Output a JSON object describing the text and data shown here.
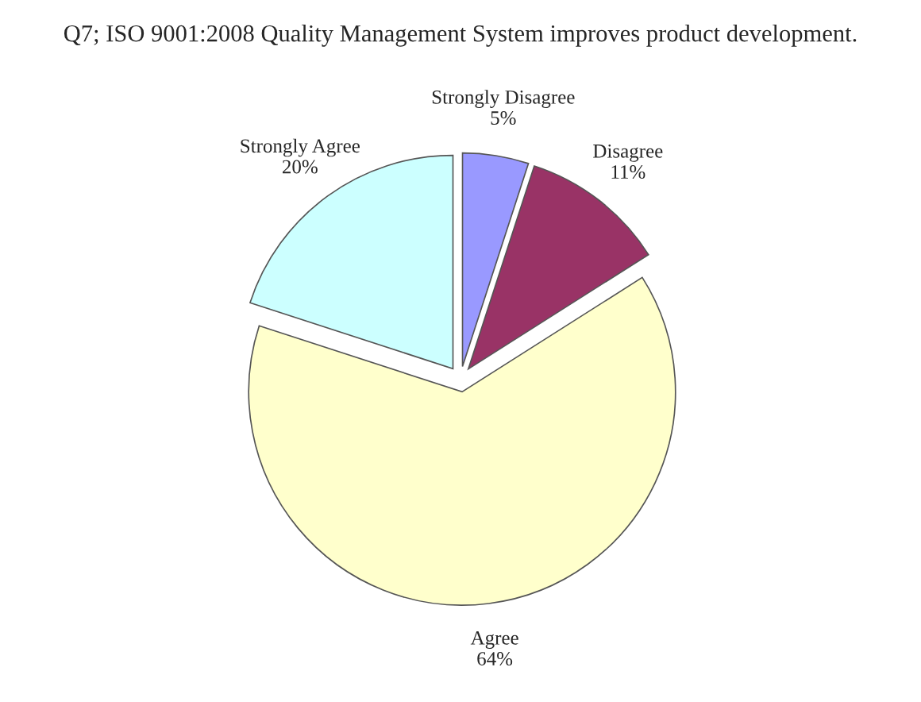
{
  "chart_data": {
    "type": "pie",
    "title": "Q7; ISO 9001:2008 Quality Management System improves product development.",
    "categories": [
      "Strongly Disagree",
      "Disagree",
      "Agree",
      "Strongly Agree"
    ],
    "values": [
      5,
      11,
      64,
      20
    ],
    "value_labels": [
      "5%",
      "11%",
      "64%",
      "20%"
    ],
    "colors": [
      "#9999ff",
      "#993366",
      "#ffffcc",
      "#ccffff"
    ],
    "legend": false
  }
}
